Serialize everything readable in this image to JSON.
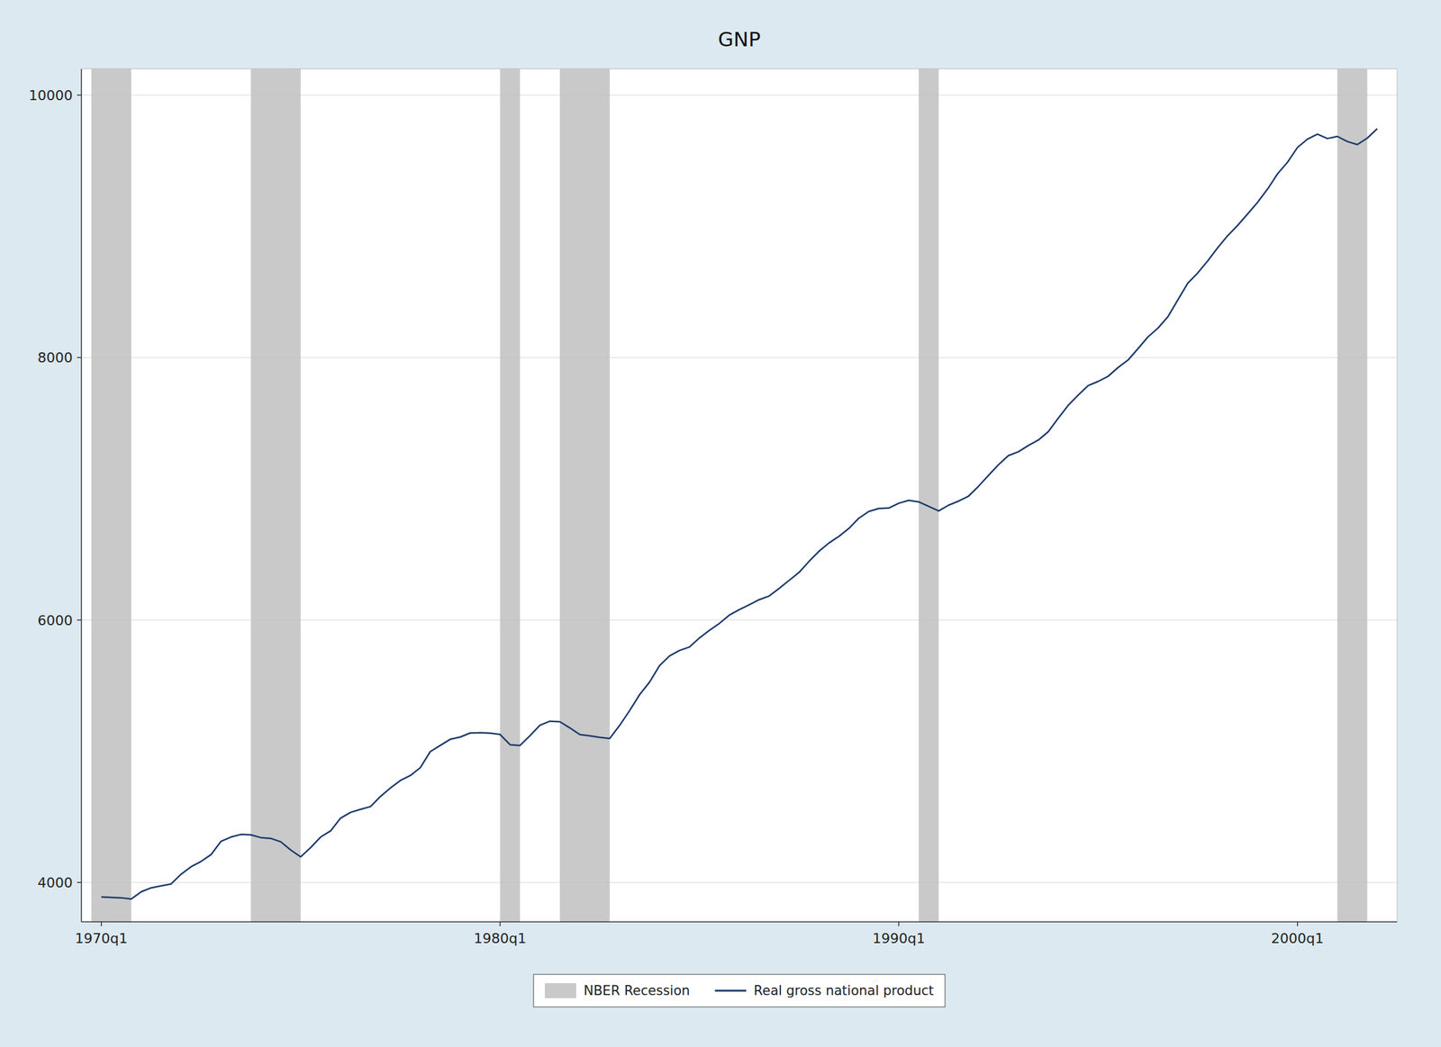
{
  "chart_data": {
    "type": "line",
    "title": "GNP",
    "x": [
      1970.0,
      1970.25,
      1970.5,
      1970.75,
      1971.0,
      1971.25,
      1971.5,
      1971.75,
      1972.0,
      1972.25,
      1972.5,
      1972.75,
      1973.0,
      1973.25,
      1973.5,
      1973.75,
      1974.0,
      1974.25,
      1974.5,
      1974.75,
      1975.0,
      1975.25,
      1975.5,
      1975.75,
      1976.0,
      1976.25,
      1976.5,
      1976.75,
      1977.0,
      1977.25,
      1977.5,
      1977.75,
      1978.0,
      1978.25,
      1978.5,
      1978.75,
      1979.0,
      1979.25,
      1979.5,
      1979.75,
      1980.0,
      1980.25,
      1980.5,
      1980.75,
      1981.0,
      1981.25,
      1981.5,
      1981.75,
      1982.0,
      1982.25,
      1982.5,
      1982.75,
      1983.0,
      1983.25,
      1983.5,
      1983.75,
      1984.0,
      1984.25,
      1984.5,
      1984.75,
      1985.0,
      1985.25,
      1985.5,
      1985.75,
      1986.0,
      1986.25,
      1986.5,
      1986.75,
      1987.0,
      1987.25,
      1987.5,
      1987.75,
      1988.0,
      1988.25,
      1988.5,
      1988.75,
      1989.0,
      1989.25,
      1989.5,
      1989.75,
      1990.0,
      1990.25,
      1990.5,
      1990.75,
      1991.0,
      1991.25,
      1991.5,
      1991.75,
      1992.0,
      1992.25,
      1992.5,
      1992.75,
      1993.0,
      1993.25,
      1993.5,
      1993.75,
      1994.0,
      1994.25,
      1994.5,
      1994.75,
      1995.0,
      1995.25,
      1995.5,
      1995.75,
      1996.0,
      1996.25,
      1996.5,
      1996.75,
      1997.0,
      1997.25,
      1997.5,
      1997.75,
      1998.0,
      1998.25,
      1998.5,
      1998.75,
      1999.0,
      1999.25,
      1999.5,
      1999.75,
      2000.0,
      2000.25,
      2000.5,
      2000.75,
      2001.0,
      2001.25,
      2001.5,
      2001.75,
      2002.0
    ],
    "series": [
      {
        "name": "Real gross national product",
        "color": "#1a3a6b",
        "values": [
          3890,
          3886,
          3883,
          3874,
          3929,
          3959,
          3974,
          3989,
          4063,
          4120,
          4160,
          4212,
          4313,
          4346,
          4366,
          4363,
          4342,
          4336,
          4310,
          4247,
          4195,
          4266,
          4346,
          4393,
          4490,
          4534,
          4557,
          4578,
          4655,
          4720,
          4777,
          4815,
          4875,
          4997,
          5044,
          5091,
          5108,
          5139,
          5141,
          5138,
          5128,
          5050,
          5044,
          5118,
          5198,
          5229,
          5225,
          5178,
          5127,
          5118,
          5106,
          5097,
          5197,
          5310,
          5431,
          5527,
          5652,
          5726,
          5768,
          5794,
          5863,
          5921,
          5974,
          6037,
          6079,
          6116,
          6155,
          6183,
          6241,
          6302,
          6363,
          6447,
          6524,
          6587,
          6638,
          6698,
          6776,
          6827,
          6850,
          6853,
          6890,
          6912,
          6900,
          6866,
          6831,
          6875,
          6906,
          6944,
          7019,
          7102,
          7183,
          7253,
          7282,
          7330,
          7371,
          7435,
          7538,
          7636,
          7714,
          7786,
          7818,
          7857,
          7924,
          7981,
          8068,
          8157,
          8224,
          8311,
          8440,
          8567,
          8645,
          8737,
          8837,
          8929,
          9007,
          9094,
          9183,
          9284,
          9400,
          9488,
          9601,
          9664,
          9702,
          9669,
          9685,
          9646,
          9623,
          9672,
          9744
        ]
      }
    ],
    "bands": [
      {
        "name": "NBER Recession",
        "color": "#c0c0c0",
        "ranges": [
          [
            1969.75,
            1970.75
          ],
          [
            1973.75,
            1975.0
          ],
          [
            1980.0,
            1980.5
          ],
          [
            1981.5,
            1982.75
          ],
          [
            1990.5,
            1991.0
          ],
          [
            2001.0,
            2001.75
          ]
        ]
      }
    ],
    "xlim": [
      1969.5,
      2002.5
    ],
    "xticks": [
      {
        "value": 1970.0,
        "label": "1970q1"
      },
      {
        "value": 1980.0,
        "label": "1980q1"
      },
      {
        "value": 1990.0,
        "label": "1990q1"
      },
      {
        "value": 2000.0,
        "label": "2000q1"
      }
    ],
    "ylim": [
      3700,
      10200
    ],
    "yticks": [
      4000,
      6000,
      8000,
      10000
    ],
    "grid": true,
    "legend": "bottom"
  }
}
